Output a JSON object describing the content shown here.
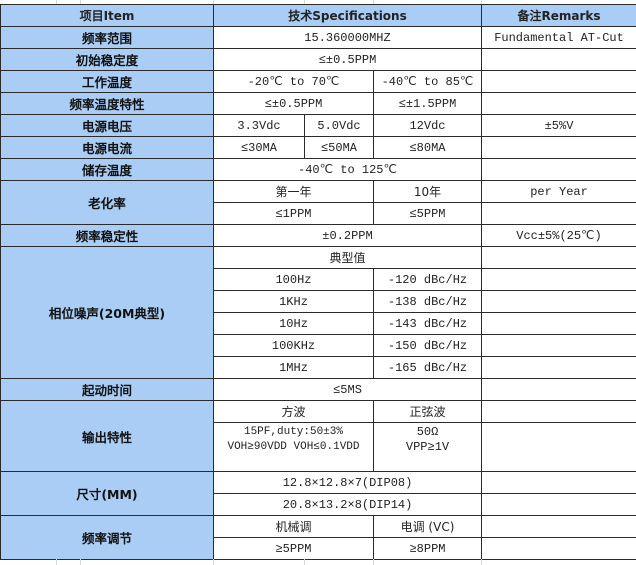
{
  "colors": {
    "label_bg": "#a9cdf4",
    "border": "#2b2b2b"
  },
  "header": {
    "item": "项目Item",
    "spec": "技术Specifications",
    "remarks": "备注Remarks"
  },
  "freq_range": {
    "label": "频率范围",
    "value": "15.360000MHZ",
    "remark": "Fundamental AT-Cut"
  },
  "init_stability": {
    "label": "初始稳定度",
    "value": "≤±0.5PPM"
  },
  "op_temp": {
    "label": "工作温度",
    "a": "-20℃ to 70℃",
    "b": "-40℃ to 85℃"
  },
  "temp_char": {
    "label": "频率温度特性",
    "a": "≤±0.5PPM",
    "b": "≤±1.5PPM"
  },
  "voltage": {
    "label": "电源电压",
    "a": "3.3Vdc",
    "b": "5.0Vdc",
    "c": "12Vdc",
    "remark": "±5%V"
  },
  "current": {
    "label": "电源电流",
    "a": "≤30MA",
    "b": "≤50MA",
    "c": "≤80MA"
  },
  "storage_temp": {
    "label": "储存温度",
    "value": "-40℃ to 125℃"
  },
  "aging": {
    "label": "老化率",
    "h1": "第一年",
    "h2": "10年",
    "remark": "per Year",
    "v1": "≤1PPM",
    "v2": "≤5PPM"
  },
  "freq_stability": {
    "label": "频率稳定性",
    "value": "±0.2PPM",
    "remark": "Vcc±5%(25℃)"
  },
  "phase_noise": {
    "label": "相位噪声(20M典型)",
    "heading": "典型值",
    "rows": [
      {
        "offset": "100Hz",
        "value": "-120 dBc/Hz"
      },
      {
        "offset": "1KHz",
        "value": "-138 dBc/Hz"
      },
      {
        "offset": "10Hz",
        "value": "-143 dBc/Hz"
      },
      {
        "offset": "100KHz",
        "value": "-150 dBc/Hz"
      },
      {
        "offset": "1MHz",
        "value": "-165 dBc/Hz"
      }
    ]
  },
  "startup": {
    "label": "起动时间",
    "value": "≤5MS"
  },
  "output": {
    "label": "输出特性",
    "square": "方波",
    "sine": "正弦波",
    "square_l1": "15PF,duty:50±3%",
    "square_l2": "VOH≥90VDD VOH≤0.1VDD",
    "sine_l1": "50Ω",
    "sine_l2": "VPP≥1V"
  },
  "size": {
    "label": "尺寸(MM)",
    "a": "12.8×12.8×7(DIP08)",
    "b": "20.8×13.2×8(DIP14)"
  },
  "tuning": {
    "label": "频率调节",
    "h1": "机械调",
    "h2": "电调 (VC)",
    "v1": "≥5PPM",
    "v2": "≥8PPM"
  }
}
